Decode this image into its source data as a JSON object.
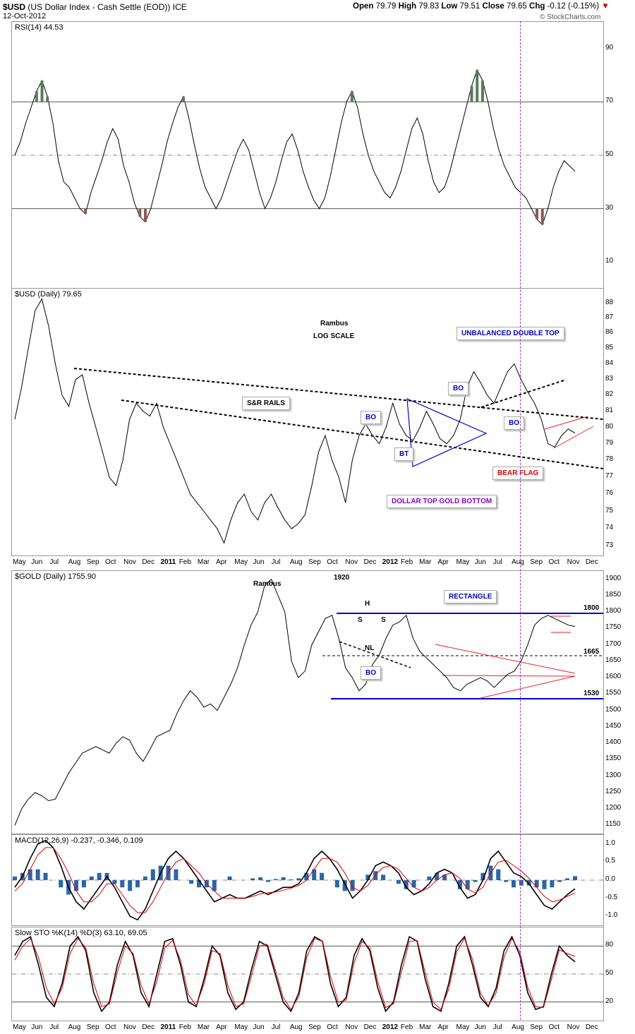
{
  "header": {
    "symbol": "$USD",
    "name": "(US Dollar Index - Cash Settle (EOD)) ICE",
    "date": "12-Oct-2012",
    "open_label": "Open",
    "open": "79.79",
    "high_label": "High",
    "high": "79.83",
    "low_label": "Low",
    "low": "79.51",
    "close_label": "Close",
    "close": "79.65",
    "chg_label": "Chg",
    "chg": "-0.12 (-0.15%)",
    "watermark": "© StockCharts.com"
  },
  "chart_data": [
    {
      "type": "line",
      "title": "RSI(14) 44.53",
      "ylim": [
        0,
        100
      ],
      "yticks": [
        "90",
        "70",
        "50",
        "30",
        "10"
      ],
      "series": [
        {
          "name": "RSI(14)",
          "values": [
            50,
            55,
            62,
            68,
            74,
            78,
            72,
            62,
            48,
            40,
            38,
            34,
            30,
            28,
            36,
            42,
            48,
            55,
            60,
            56,
            46,
            40,
            32,
            27,
            25,
            30,
            38,
            46,
            55,
            62,
            68,
            72,
            64,
            54,
            45,
            38,
            34,
            30,
            34,
            40,
            46,
            52,
            56,
            52,
            44,
            36,
            30,
            34,
            40,
            48,
            55,
            58,
            52,
            44,
            38,
            33,
            30,
            34,
            42,
            52,
            62,
            70,
            74,
            68,
            58,
            50,
            44,
            40,
            36,
            34,
            38,
            44,
            52,
            60,
            64,
            58,
            48,
            40,
            36,
            38,
            44,
            52,
            60,
            68,
            76,
            82,
            78,
            70,
            60,
            52,
            46,
            42,
            38,
            36,
            34,
            30,
            26,
            24,
            30,
            38,
            44,
            48,
            46,
            44
          ]
        }
      ]
    },
    {
      "type": "line",
      "title": "$USD (Daily) 79.65",
      "ylim": [
        72.5,
        89
      ],
      "scale": "log",
      "yticks": [
        "88",
        "87",
        "86",
        "85",
        "84",
        "83",
        "82",
        "81",
        "80",
        "79",
        "78",
        "77",
        "76",
        "75",
        "74",
        "73"
      ],
      "series": [
        {
          "name": "$USD (Daily)",
          "values": [
            80.5,
            82.5,
            85,
            87.5,
            88.3,
            86.5,
            84,
            82,
            81.3,
            83,
            83.3,
            81.5,
            80,
            78.5,
            77,
            76.5,
            78,
            80.5,
            81.5,
            81,
            80.7,
            81.5,
            80,
            79,
            78,
            77,
            76,
            75.5,
            75,
            74.5,
            74,
            73.2,
            74.5,
            75.5,
            76,
            75,
            74.5,
            75.5,
            76,
            75.2,
            74.5,
            74,
            74.3,
            74.8,
            76.5,
            78.5,
            79.5,
            78,
            77,
            75.5,
            78,
            79.5,
            80.2,
            79.5,
            79,
            80,
            81.5,
            80.2,
            79.5,
            79.2,
            80,
            81,
            80.2,
            79.3,
            79,
            79.5,
            80.5,
            82.5,
            83.5,
            82.8,
            82,
            81.5,
            82.5,
            83.5,
            84,
            83,
            82.2,
            81.5,
            80.5,
            79,
            78.8,
            79.5,
            79.9,
            79.65
          ]
        }
      ]
    },
    {
      "type": "line",
      "title": "$GOLD (Daily) 1755.90",
      "ylim": [
        1125,
        1925
      ],
      "yticks": [
        "1900",
        "1850",
        "1800",
        "1750",
        "1700",
        "1650",
        "1600",
        "1550",
        "1500",
        "1450",
        "1400",
        "1350",
        "1300",
        "1250",
        "1200",
        "1150"
      ],
      "series": [
        {
          "name": "$GOLD (Daily)",
          "values": [
            1150,
            1200,
            1230,
            1250,
            1240,
            1225,
            1230,
            1270,
            1310,
            1340,
            1370,
            1380,
            1390,
            1380,
            1370,
            1400,
            1420,
            1410,
            1370,
            1345,
            1380,
            1420,
            1430,
            1440,
            1490,
            1530,
            1560,
            1540,
            1510,
            1520,
            1500,
            1540,
            1580,
            1630,
            1700,
            1760,
            1800,
            1880,
            1900,
            1850,
            1800,
            1650,
            1600,
            1620,
            1700,
            1740,
            1780,
            1790,
            1720,
            1630,
            1600,
            1560,
            1580,
            1640,
            1670,
            1720,
            1760,
            1770,
            1790,
            1720,
            1680,
            1660,
            1640,
            1620,
            1600,
            1570,
            1560,
            1580,
            1590,
            1600,
            1590,
            1570,
            1590,
            1610,
            1620,
            1650,
            1700,
            1760,
            1780,
            1790,
            1780,
            1770,
            1760,
            1756
          ]
        }
      ]
    },
    {
      "type": "line",
      "title": "MACD(12,26,9) -0.237, -0.346, 0.109",
      "ylim": [
        -1.25,
        1.25
      ],
      "yticks": [
        "1.0",
        "0.5",
        "0.0",
        "-0.5",
        "-1.0"
      ],
      "series": [
        {
          "name": "MACD",
          "values": [
            -0.2,
            0.1,
            0.6,
            1.0,
            1.1,
            0.9,
            0.4,
            -0.2,
            -0.6,
            -0.8,
            -0.5,
            -0.2,
            0.1,
            -0.2,
            -0.6,
            -1.0,
            -1.1,
            -0.8,
            -0.3,
            0.2,
            0.6,
            0.8,
            0.6,
            0.3,
            0.0,
            -0.3,
            -0.6,
            -0.5,
            -0.4,
            -0.5,
            -0.5,
            -0.4,
            -0.3,
            -0.4,
            -0.3,
            -0.2,
            -0.2,
            -0.1,
            0.2,
            0.6,
            0.8,
            0.6,
            0.3,
            -0.1,
            -0.5,
            -0.3,
            0.0,
            0.4,
            0.5,
            0.4,
            0.2,
            -0.2,
            -0.4,
            -0.3,
            -0.1,
            0.2,
            0.3,
            0.2,
            -0.2,
            -0.5,
            -0.4,
            0.0,
            0.6,
            0.8,
            0.5,
            0.2,
            0.1,
            -0.1,
            -0.4,
            -0.7,
            -0.8,
            -0.6,
            -0.4,
            -0.24
          ]
        },
        {
          "name": "Signal",
          "values": [
            -0.3,
            -0.1,
            0.3,
            0.7,
            0.9,
            0.9,
            0.6,
            0.2,
            -0.3,
            -0.6,
            -0.6,
            -0.4,
            -0.1,
            -0.1,
            -0.4,
            -0.7,
            -0.9,
            -0.9,
            -0.6,
            -0.2,
            0.2,
            0.5,
            0.6,
            0.4,
            0.2,
            -0.1,
            -0.3,
            -0.5,
            -0.5,
            -0.5,
            -0.5,
            -0.45,
            -0.38,
            -0.35,
            -0.33,
            -0.28,
            -0.22,
            -0.15,
            0.0,
            0.3,
            0.6,
            0.6,
            0.5,
            0.2,
            -0.2,
            -0.3,
            -0.15,
            0.15,
            0.35,
            0.4,
            0.3,
            0.05,
            -0.2,
            -0.3,
            -0.2,
            0.0,
            0.15,
            0.2,
            0.05,
            -0.25,
            -0.35,
            -0.2,
            0.2,
            0.5,
            0.55,
            0.4,
            0.25,
            0.05,
            -0.2,
            -0.45,
            -0.6,
            -0.55,
            -0.45,
            -0.35
          ]
        },
        {
          "name": "Histogram",
          "values": [
            0.1,
            0.2,
            0.3,
            0.3,
            0.2,
            0.0,
            -0.2,
            -0.4,
            -0.3,
            -0.2,
            0.1,
            0.2,
            0.2,
            -0.1,
            -0.2,
            -0.3,
            -0.2,
            0.1,
            0.3,
            0.4,
            0.4,
            0.3,
            0.0,
            -0.1,
            -0.2,
            -0.2,
            -0.3,
            0.0,
            0.1,
            0.0,
            0.0,
            0.05,
            0.08,
            -0.05,
            0.03,
            0.08,
            0.02,
            0.05,
            0.2,
            0.3,
            0.2,
            0.0,
            -0.2,
            -0.3,
            -0.3,
            0.0,
            0.15,
            0.25,
            0.15,
            0.0,
            -0.1,
            -0.25,
            -0.2,
            0.0,
            0.1,
            0.2,
            0.15,
            0.0,
            -0.25,
            -0.25,
            -0.05,
            0.2,
            0.4,
            0.3,
            -0.05,
            -0.2,
            -0.15,
            -0.15,
            -0.2,
            -0.25,
            -0.2,
            -0.05,
            0.05,
            0.11
          ]
        }
      ]
    },
    {
      "type": "line",
      "title": "Slow STO %K(14) %D(3) 63.10, 69.05",
      "ylim": [
        0,
        100
      ],
      "yticks": [
        "80",
        "50",
        "20"
      ],
      "series": [
        {
          "name": "%K",
          "values": [
            70,
            85,
            90,
            60,
            25,
            15,
            40,
            80,
            90,
            75,
            30,
            10,
            20,
            60,
            85,
            70,
            30,
            15,
            50,
            85,
            88,
            60,
            20,
            15,
            45,
            80,
            70,
            30,
            12,
            20,
            55,
            85,
            80,
            50,
            20,
            10,
            30,
            75,
            90,
            85,
            40,
            15,
            25,
            70,
            88,
            75,
            35,
            10,
            20,
            60,
            90,
            85,
            45,
            15,
            10,
            40,
            80,
            90,
            60,
            25,
            15,
            35,
            75,
            90,
            70,
            30,
            12,
            15,
            50,
            80,
            70,
            63
          ]
        },
        {
          "name": "%D",
          "values": [
            65,
            80,
            88,
            68,
            35,
            18,
            35,
            72,
            88,
            78,
            40,
            15,
            18,
            52,
            80,
            72,
            38,
            18,
            42,
            78,
            86,
            65,
            28,
            16,
            40,
            75,
            72,
            38,
            15,
            18,
            48,
            80,
            82,
            55,
            25,
            12,
            26,
            68,
            88,
            85,
            48,
            20,
            22,
            62,
            85,
            78,
            42,
            14,
            18,
            52,
            85,
            86,
            52,
            20,
            12,
            34,
            74,
            88,
            66,
            30,
            16,
            30,
            68,
            88,
            74,
            36,
            15,
            14,
            44,
            76,
            72,
            69
          ]
        }
      ]
    }
  ],
  "xaxis_top": [
    "May",
    "Jun",
    "Jul",
    "Aug",
    "Sep",
    "Oct",
    "Nov",
    "Dec",
    "2011",
    "Feb",
    "Mar",
    "Apr",
    "May",
    "Jun",
    "Jul",
    "Aug",
    "Sep",
    "Oct",
    "Nov",
    "Dec",
    "2012",
    "Feb",
    "Mar",
    "Apr",
    "May",
    "Jun",
    "Jul",
    "Aug",
    "Sep",
    "Oct",
    "Nov",
    "Dec"
  ],
  "xaxis_bottom": [
    "May",
    "Jun",
    "Jul",
    "Aug",
    "Sep",
    "Oct",
    "Nov",
    "Dec",
    "2011",
    "Feb",
    "Mar",
    "Apr",
    "May",
    "Jun",
    "Jul",
    "Aug",
    "Sep",
    "Oct",
    "Nov",
    "Dec",
    "2012",
    "Feb",
    "Mar",
    "Apr",
    "May",
    "Jun",
    "Jul",
    "Aug",
    "Sep",
    "Oct",
    "Nov",
    "Dec"
  ],
  "annotations": {
    "rambus_usd": "Rambus",
    "log_scale": "LOG SCALE",
    "unbalanced_double_top": "UNBALANCED DOUBLE TOP",
    "sr_rails": "S&R RAILS",
    "bo1": "BO",
    "bo2": "BO",
    "bo3": "BO",
    "bt": "BT",
    "bear_flag": "BEAR FLAG",
    "dollar_top_gold_bottom": "DOLLAR TOP GOLD BOTTOM",
    "rambus_gold": "Rambus",
    "g1920": "1920",
    "rectangle": "RECTANGLE",
    "l1800": "1800",
    "l1665": "1665",
    "l1530": "1530",
    "h": "H",
    "s1": "S",
    "s2": "S",
    "nl": "NL",
    "bo_gold": "BO"
  },
  "colors": {
    "rsi_overbought": "#5a7a5a",
    "rsi_oversold": "#8b5a55",
    "signal": "#dd0000",
    "histogram": "#2a65a8",
    "trend_blue": "#0000cc",
    "trend_red": "#ee2222",
    "vline": "#9933cc"
  }
}
